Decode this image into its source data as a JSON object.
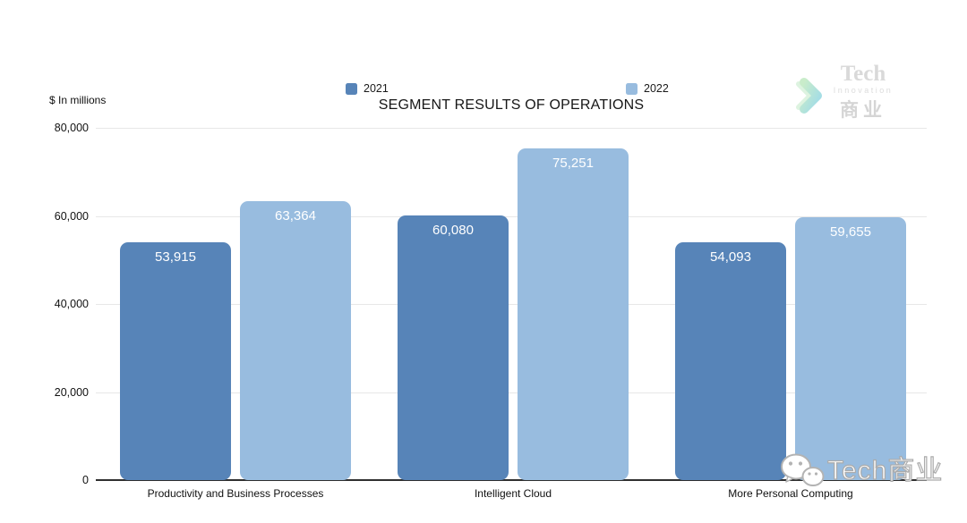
{
  "title": "SEGMENT RESULTS OF OPERATIONS",
  "units_label": "$ In millions",
  "chart_data": {
    "type": "bar",
    "title": "SEGMENT RESULTS OF OPERATIONS",
    "units": "$ In millions",
    "categories": [
      "Productivity and Business Processes",
      "Intelligent Cloud",
      "More Personal Computing"
    ],
    "series": [
      {
        "name": "2021",
        "color": "#5784b8",
        "values": [
          53915,
          60080,
          54093
        ],
        "labels": [
          "53,915",
          "60,080",
          "54,093"
        ]
      },
      {
        "name": "2022",
        "color": "#98bcdf",
        "values": [
          63364,
          75251,
          59655
        ],
        "labels": [
          "63,364",
          "75,251",
          "59,655"
        ]
      }
    ],
    "ylim": [
      0,
      80000
    ],
    "yticks": [
      0,
      20000,
      40000,
      60000,
      80000
    ],
    "ytick_labels": [
      "0",
      "20,000",
      "40,000",
      "60,000",
      "80,000"
    ],
    "grid": "horizontal",
    "legend_position": "top"
  },
  "watermarks": {
    "logo_top": {
      "line1": "Tech",
      "line2": "Innovation",
      "line3": "商业"
    },
    "logo_bottom": {
      "text": "Tech商业"
    }
  }
}
